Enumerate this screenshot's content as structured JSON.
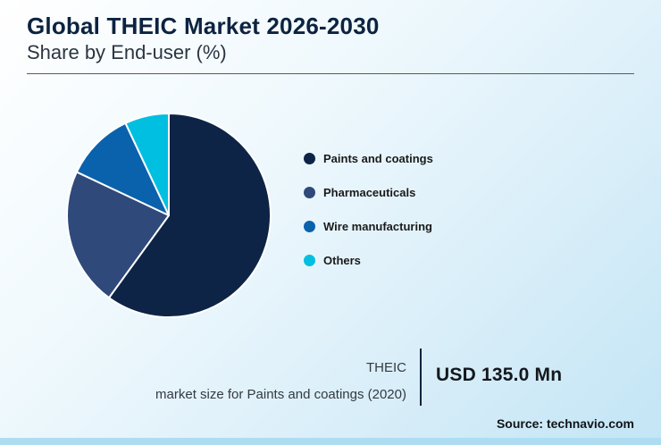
{
  "header": {
    "title": "Global THEIC Market 2026-2030",
    "subtitle": "Share by End-user (%)"
  },
  "chart_data": {
    "type": "pie",
    "title": "Global THEIC Market 2026-2030",
    "subtitle": "Share by End-user (%)",
    "categories": [
      "Paints and coatings",
      "Pharmaceuticals",
      "Wire manufacturing",
      "Others"
    ],
    "values": [
      60,
      22,
      11,
      7
    ],
    "unit": "%",
    "colors": [
      "#0e2446",
      "#30497b",
      "#0a62ad",
      "#00bfe0"
    ],
    "legend_position": "right",
    "start_angle_deg": -90,
    "direction": "clockwise",
    "slice_gap_color": "#ffffff"
  },
  "stat": {
    "label_line1": "THEIC",
    "label_line2": "market size for Paints and coatings (2020)",
    "value": "USD 135.0 Mn"
  },
  "source": "Source: technavio.com"
}
